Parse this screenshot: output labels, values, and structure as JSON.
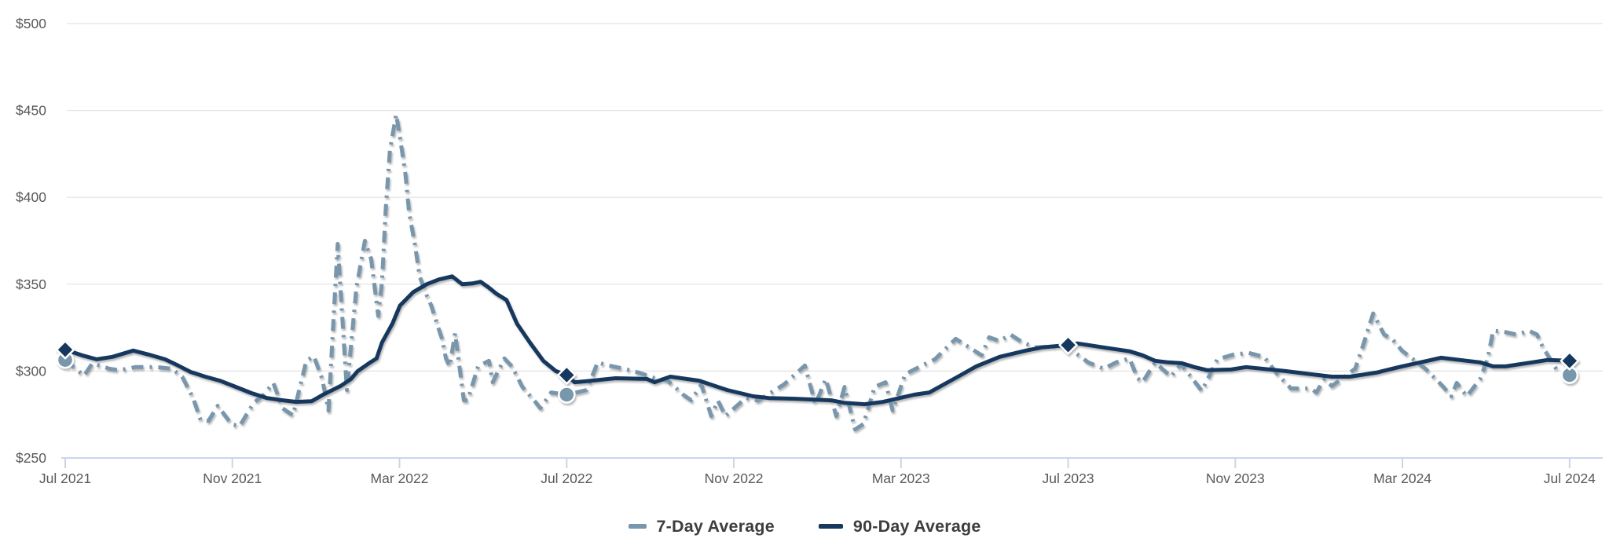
{
  "chart_data": {
    "type": "line",
    "title": "",
    "xlabel": "",
    "ylabel": "",
    "grid": "horizontal",
    "legend_position": "bottom",
    "ylim": [
      250,
      500
    ],
    "x_unit": "months_since_jul_2021",
    "xlim_months": [
      0,
      36
    ],
    "y_axis": {
      "ticks": [
        {
          "label": "$500",
          "value": 500
        },
        {
          "label": "$450",
          "value": 450
        },
        {
          "label": "$400",
          "value": 400
        },
        {
          "label": "$350",
          "value": 350
        },
        {
          "label": "$300",
          "value": 300
        },
        {
          "label": "$250",
          "value": 250
        }
      ]
    },
    "x_axis": {
      "ticks": [
        {
          "label": "Jul 2021",
          "month": 0
        },
        {
          "label": "Nov 2021",
          "month": 4
        },
        {
          "label": "Mar 2022",
          "month": 8
        },
        {
          "label": "Jul 2022",
          "month": 12
        },
        {
          "label": "Nov 2022",
          "month": 16
        },
        {
          "label": "Mar 2023",
          "month": 20
        },
        {
          "label": "Jul 2023",
          "month": 24
        },
        {
          "label": "Nov 2023",
          "month": 28
        },
        {
          "label": "Mar 2024",
          "month": 32
        },
        {
          "label": "Jul 2024",
          "month": 36
        }
      ]
    },
    "series": [
      {
        "name": "7-Day Average",
        "style": "dash-dot",
        "color": "#7896AC",
        "marker": {
          "shape": "circle",
          "color": "#7896AC",
          "points": [
            [
              0,
              306.4
            ],
            [
              12,
              286.4
            ],
            [
              36,
              297.7
            ]
          ]
        },
        "points": [
          [
            0,
            306.4
          ],
          [
            0.45,
            297.3
          ],
          [
            0.65,
            304.5
          ],
          [
            1.05,
            301.4
          ],
          [
            1.3,
            300.5
          ],
          [
            1.68,
            302.3
          ],
          [
            2.2,
            302.3
          ],
          [
            2.55,
            301.4
          ],
          [
            2.8,
            296.8
          ],
          [
            3.06,
            284.5
          ],
          [
            3.24,
            271.8
          ],
          [
            3.43,
            271.4
          ],
          [
            3.65,
            280.0
          ],
          [
            3.98,
            269.5
          ],
          [
            4.17,
            268.2
          ],
          [
            4.51,
            281.8
          ],
          [
            4.75,
            286.4
          ],
          [
            4.98,
            293.2
          ],
          [
            5.2,
            278.6
          ],
          [
            5.45,
            274.5
          ],
          [
            5.77,
            305.9
          ],
          [
            5.95,
            308.6
          ],
          [
            6.15,
            295.5
          ],
          [
            6.3,
            277.3
          ],
          [
            6.52,
            373.2
          ],
          [
            6.74,
            289.1
          ],
          [
            6.97,
            348.2
          ],
          [
            7.17,
            375.0
          ],
          [
            7.32,
            364.5
          ],
          [
            7.49,
            331.8
          ],
          [
            7.58,
            351.4
          ],
          [
            7.67,
            393.6
          ],
          [
            7.77,
            427.3
          ],
          [
            7.92,
            447.7
          ],
          [
            8.01,
            434.5
          ],
          [
            8.14,
            413.6
          ],
          [
            8.23,
            390.9
          ],
          [
            8.37,
            372.7
          ],
          [
            8.48,
            354.5
          ],
          [
            8.65,
            343.6
          ],
          [
            8.76,
            337.7
          ],
          [
            8.92,
            325.5
          ],
          [
            9.02,
            318.2
          ],
          [
            9.11,
            307.3
          ],
          [
            9.2,
            302.7
          ],
          [
            9.33,
            321.8
          ],
          [
            9.54,
            283.2
          ],
          [
            9.63,
            283.2
          ],
          [
            9.88,
            302.7
          ],
          [
            10.14,
            305.9
          ],
          [
            10.23,
            293.6
          ],
          [
            10.51,
            307.3
          ],
          [
            10.69,
            302.7
          ],
          [
            10.94,
            290.9
          ],
          [
            11.25,
            282.3
          ],
          [
            11.37,
            278.6
          ],
          [
            11.63,
            287.7
          ],
          [
            12,
            286.4
          ],
          [
            12.48,
            289.1
          ],
          [
            12.74,
            305.0
          ],
          [
            12.93,
            303.6
          ],
          [
            13.36,
            301.4
          ],
          [
            13.73,
            299.1
          ],
          [
            14.1,
            296.0
          ],
          [
            14.42,
            294.5
          ],
          [
            14.79,
            286.4
          ],
          [
            14.98,
            283.2
          ],
          [
            15.22,
            292.3
          ],
          [
            15.46,
            274.1
          ],
          [
            15.62,
            283.0
          ],
          [
            15.8,
            274.1
          ],
          [
            16.28,
            284.5
          ],
          [
            16.58,
            283.0
          ],
          [
            17.2,
            292.3
          ],
          [
            17.7,
            303.2
          ],
          [
            17.95,
            280.9
          ],
          [
            18.2,
            295.5
          ],
          [
            18.45,
            274.1
          ],
          [
            18.65,
            290.9
          ],
          [
            18.9,
            266.4
          ],
          [
            19.1,
            269.5
          ],
          [
            19.37,
            290.9
          ],
          [
            19.63,
            293.6
          ],
          [
            19.8,
            277.3
          ],
          [
            20.1,
            298.2
          ],
          [
            20.5,
            303.2
          ],
          [
            20.81,
            306.8
          ],
          [
            21.31,
            318.6
          ],
          [
            21.93,
            309.1
          ],
          [
            22.11,
            319.5
          ],
          [
            22.36,
            317.3
          ],
          [
            22.62,
            321.0
          ],
          [
            22.92,
            316.4
          ],
          [
            23.23,
            313.6
          ],
          [
            23.6,
            314.1
          ],
          [
            24,
            313.6
          ],
          [
            24.48,
            305.0
          ],
          [
            24.85,
            301.4
          ],
          [
            25.15,
            305.0
          ],
          [
            25.47,
            307.3
          ],
          [
            25.66,
            295.9
          ],
          [
            25.78,
            293.6
          ],
          [
            26.08,
            305.0
          ],
          [
            26.46,
            296.8
          ],
          [
            26.7,
            304.1
          ],
          [
            27.2,
            288.6
          ],
          [
            27.57,
            306.8
          ],
          [
            27.95,
            309.5
          ],
          [
            28.32,
            310.5
          ],
          [
            28.69,
            308.2
          ],
          [
            29.01,
            298.2
          ],
          [
            29.33,
            290.0
          ],
          [
            29.81,
            290.0
          ],
          [
            29.94,
            287.7
          ],
          [
            30.13,
            295.5
          ],
          [
            30.31,
            291.4
          ],
          [
            30.87,
            301.4
          ],
          [
            31.06,
            315.0
          ],
          [
            31.3,
            333.2
          ],
          [
            31.56,
            321.0
          ],
          [
            31.75,
            318.6
          ],
          [
            31.99,
            311.8
          ],
          [
            32.23,
            307.3
          ],
          [
            32.55,
            301.4
          ],
          [
            32.74,
            296.8
          ],
          [
            32.98,
            290.9
          ],
          [
            33.17,
            285.5
          ],
          [
            33.3,
            293.2
          ],
          [
            33.54,
            285.5
          ],
          [
            33.86,
            295.5
          ],
          [
            34.04,
            307.3
          ],
          [
            34.17,
            323.2
          ],
          [
            34.42,
            322.7
          ],
          [
            34.73,
            321.0
          ],
          [
            35.03,
            323.2
          ],
          [
            35.22,
            321.0
          ],
          [
            35.35,
            314.1
          ],
          [
            35.7,
            300.5
          ],
          [
            36,
            297.7
          ]
        ]
      },
      {
        "name": "90-Day Average",
        "style": "solid",
        "color": "#17395E",
        "marker": {
          "shape": "diamond",
          "color": "#17395E",
          "points": [
            [
              0,
              312.3
            ],
            [
              12,
              297.7
            ],
            [
              24,
              315.0
            ],
            [
              36,
              305.9
            ]
          ]
        },
        "points": [
          [
            0,
            312.3
          ],
          [
            0.4,
            309.1
          ],
          [
            0.75,
            306.8
          ],
          [
            1.13,
            308.2
          ],
          [
            1.63,
            311.8
          ],
          [
            2.0,
            309.5
          ],
          [
            2.39,
            306.8
          ],
          [
            2.7,
            303.2
          ],
          [
            3.0,
            299.5
          ],
          [
            3.35,
            296.8
          ],
          [
            3.7,
            294.5
          ],
          [
            4.08,
            290.9
          ],
          [
            4.46,
            287.3
          ],
          [
            4.83,
            284.5
          ],
          [
            5.21,
            283.2
          ],
          [
            5.53,
            282.3
          ],
          [
            5.9,
            282.7
          ],
          [
            6.2,
            286.8
          ],
          [
            6.59,
            291.4
          ],
          [
            6.84,
            295.5
          ],
          [
            7.0,
            300.0
          ],
          [
            7.27,
            304.5
          ],
          [
            7.45,
            307.3
          ],
          [
            7.58,
            316.4
          ],
          [
            7.83,
            327.3
          ],
          [
            8.01,
            337.7
          ],
          [
            8.33,
            345.5
          ],
          [
            8.65,
            350.0
          ],
          [
            8.94,
            352.7
          ],
          [
            9.26,
            354.5
          ],
          [
            9.5,
            350.0
          ],
          [
            9.76,
            350.5
          ],
          [
            9.94,
            351.4
          ],
          [
            10.13,
            348.2
          ],
          [
            10.32,
            344.5
          ],
          [
            10.56,
            340.9
          ],
          [
            10.81,
            327.3
          ],
          [
            11.12,
            316.4
          ],
          [
            11.44,
            305.9
          ],
          [
            11.74,
            300.0
          ],
          [
            12,
            297.7
          ],
          [
            12.19,
            293.6
          ],
          [
            12.43,
            294.1
          ],
          [
            13.17,
            295.9
          ],
          [
            13.92,
            295.5
          ],
          [
            14.1,
            293.6
          ],
          [
            14.48,
            296.8
          ],
          [
            15.17,
            294.5
          ],
          [
            15.84,
            289.1
          ],
          [
            16.47,
            285.5
          ],
          [
            16.84,
            284.5
          ],
          [
            17.46,
            284.1
          ],
          [
            18.33,
            283.2
          ],
          [
            18.63,
            281.8
          ],
          [
            19.13,
            280.9
          ],
          [
            19.57,
            282.3
          ],
          [
            20.31,
            286.4
          ],
          [
            20.68,
            287.7
          ],
          [
            21.43,
            297.7
          ],
          [
            21.8,
            302.7
          ],
          [
            22.36,
            308.2
          ],
          [
            22.99,
            311.8
          ],
          [
            23.37,
            313.6
          ],
          [
            24,
            315.0
          ],
          [
            24.22,
            315.9
          ],
          [
            24.85,
            313.6
          ],
          [
            25.47,
            311.4
          ],
          [
            25.78,
            309.1
          ],
          [
            26.08,
            305.9
          ],
          [
            26.4,
            305.0
          ],
          [
            26.72,
            304.5
          ],
          [
            27.02,
            302.3
          ],
          [
            27.33,
            300.5
          ],
          [
            27.9,
            300.9
          ],
          [
            28.26,
            302.3
          ],
          [
            29.2,
            300.0
          ],
          [
            29.81,
            298.2
          ],
          [
            30.31,
            296.8
          ],
          [
            30.74,
            296.8
          ],
          [
            31.37,
            299.1
          ],
          [
            31.99,
            302.7
          ],
          [
            32.6,
            305.9
          ],
          [
            32.92,
            307.7
          ],
          [
            33.54,
            305.9
          ],
          [
            33.86,
            305.0
          ],
          [
            34.17,
            302.7
          ],
          [
            34.47,
            302.7
          ],
          [
            35.1,
            305.0
          ],
          [
            35.48,
            306.4
          ],
          [
            36,
            305.9
          ]
        ]
      }
    ]
  },
  "legend": {
    "items": [
      {
        "label": "7-Day Average"
      },
      {
        "label": "90-Day Average"
      }
    ]
  },
  "colors": {
    "background": "#ffffff",
    "gridline": "#e3e3e3",
    "axis_line": "#c9d6ea",
    "tick_label": "#595959",
    "legend_text": "#3d3d3d",
    "series_7day": "#7896AC",
    "series_90day": "#17395E"
  }
}
